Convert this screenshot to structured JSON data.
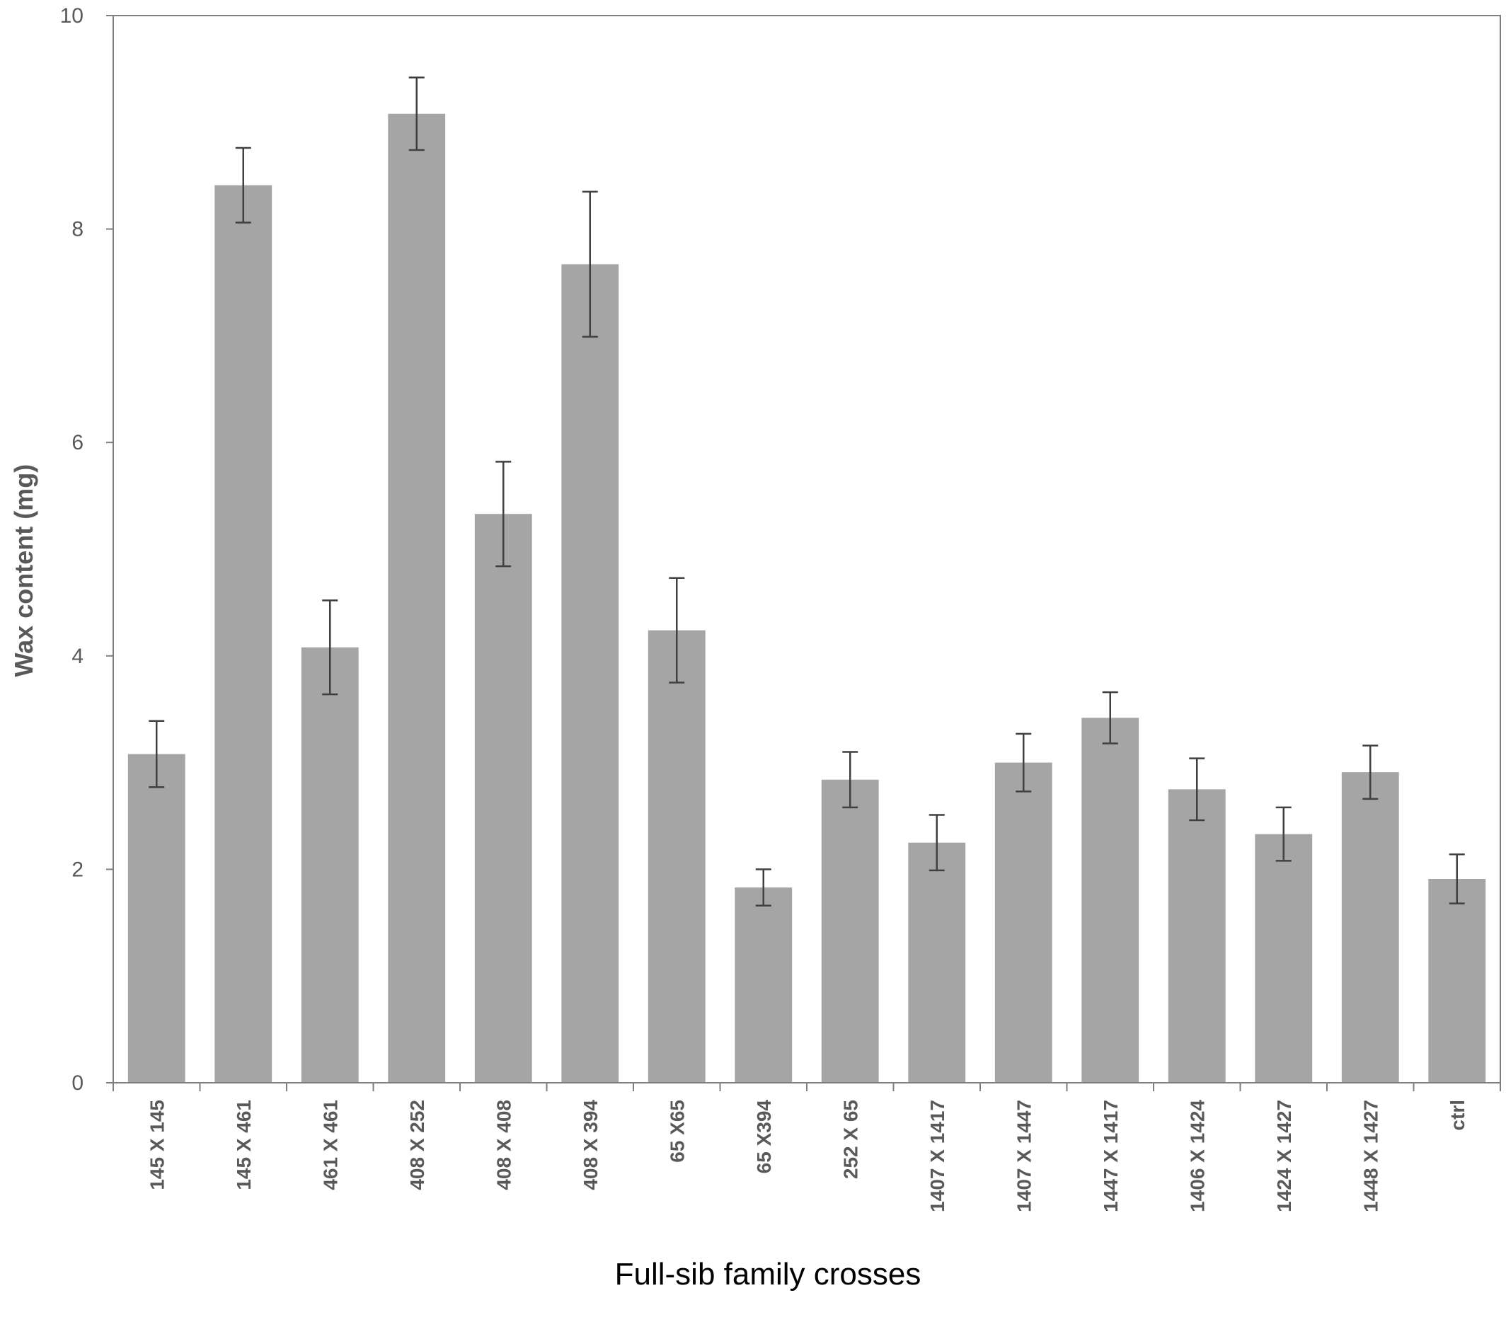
{
  "chart_data": {
    "type": "bar",
    "title": "",
    "xlabel": "Full-sib family crosses",
    "ylabel": "Wax content (mg)",
    "ylim": [
      0,
      10
    ],
    "yticks": [
      0,
      2,
      4,
      6,
      8,
      10
    ],
    "grid": false,
    "legend": "none",
    "bar_color": "#a5a5a5",
    "error_bar_color": "#404040",
    "axis_color": "#7f7f7f",
    "categories": [
      "145 X 145",
      "145 X 461",
      "461 X 461",
      "408 X 252",
      "408 X 408",
      "408 X 394",
      "65 X65",
      "65 X394",
      "252 X 65",
      "1407 X 1417",
      "1407 X 1447",
      "1447 X 1417",
      "1406 X 1424",
      "1424 X 1427",
      "1448 X 1427",
      "ctrl"
    ],
    "series": [
      {
        "values": [
          3.08,
          8.41,
          4.08,
          9.08,
          5.33,
          7.67,
          4.24,
          1.83,
          2.84,
          2.25,
          3.0,
          3.42,
          2.75,
          2.33,
          2.91,
          1.91
        ],
        "errors": [
          0.31,
          0.35,
          0.44,
          0.34,
          0.49,
          0.68,
          0.49,
          0.17,
          0.26,
          0.26,
          0.27,
          0.24,
          0.29,
          0.25,
          0.25,
          0.23
        ]
      }
    ]
  }
}
